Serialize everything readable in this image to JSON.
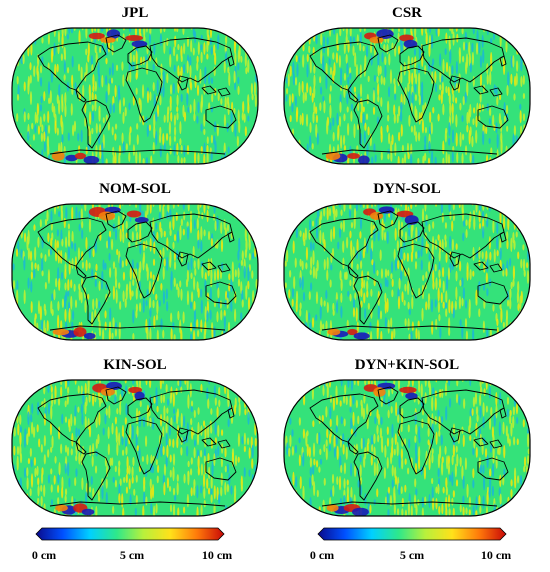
{
  "panels": [
    {
      "title": "JPL"
    },
    {
      "title": "CSR"
    },
    {
      "title": "NOM-SOL"
    },
    {
      "title": "DYN-SOL"
    },
    {
      "title": "KIN-SOL"
    },
    {
      "title": "DYN+KIN-SOL"
    }
  ],
  "colorbars": [
    {
      "min_label": "0 cm",
      "mid_label": "5 cm",
      "max_label": "10 cm"
    },
    {
      "min_label": "0 cm",
      "mid_label": "5 cm",
      "max_label": "10 cm"
    }
  ],
  "colors": {
    "ocean_base": "#34e27a",
    "stripe_light": "#c7f02e",
    "stripe_yellow": "#f6e60a",
    "stripe_cyan": "#1bb7d8",
    "hot_red": "#d61b12",
    "hot_orange": "#f57f0b",
    "cold_blue": "#1a1ab8",
    "coastline": "#000000",
    "colormap": [
      "#0a0a8c",
      "#0050ff",
      "#00d0ff",
      "#2ee88a",
      "#b8f03c",
      "#ffe11a",
      "#ff7a0a",
      "#c80808"
    ]
  }
}
